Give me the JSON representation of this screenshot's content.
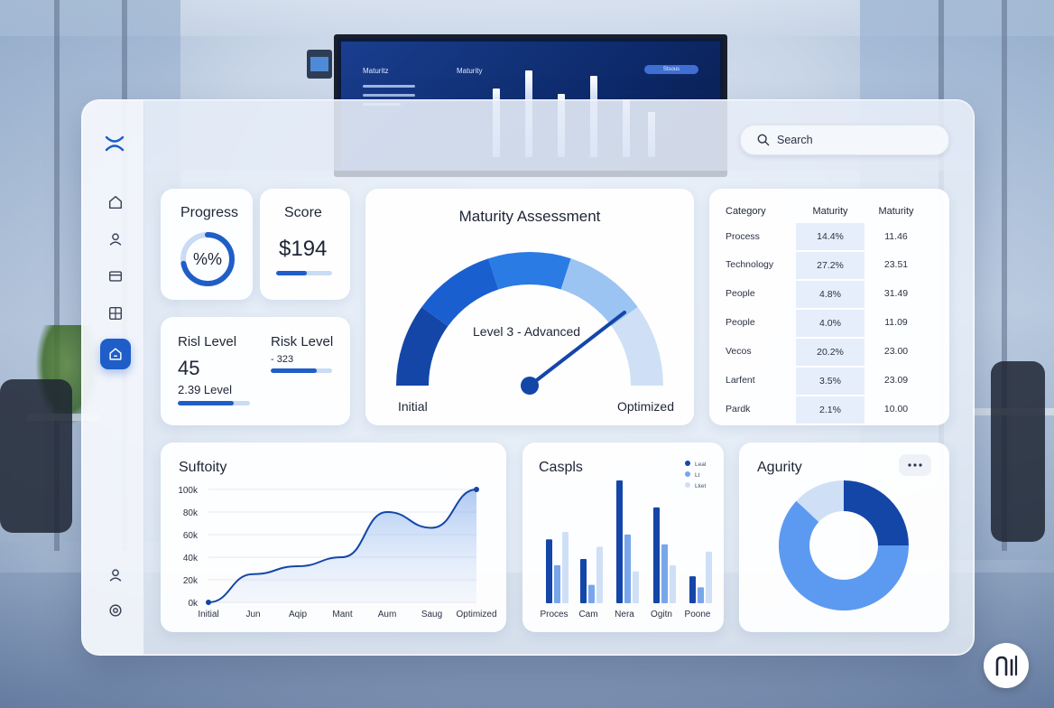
{
  "monitor": {
    "title_left": "Maturitz",
    "title_right": "Maturity",
    "button": "Stsous"
  },
  "search": {
    "placeholder": "Search"
  },
  "sidebar": {
    "logo_icon": "logo-x-icon",
    "items": [
      {
        "icon": "home-icon",
        "active": false
      },
      {
        "icon": "user-icon",
        "active": false
      },
      {
        "icon": "card-icon",
        "active": false
      },
      {
        "icon": "grid-icon",
        "active": false
      },
      {
        "icon": "house-icon",
        "active": true
      }
    ],
    "bottom_items": [
      {
        "icon": "profile-icon"
      },
      {
        "icon": "settings-icon"
      }
    ]
  },
  "progress_card": {
    "title": "Progress",
    "value": "%%",
    "progress": 0.72
  },
  "score_card": {
    "title": "Score",
    "value": "$194",
    "progress": 0.55
  },
  "risk_card": {
    "title_left": "Risl Level",
    "value_left": "45",
    "sub_left": "2.39 Level",
    "title_right": "Risk Level",
    "value_right": "- 323",
    "progress_left": 0.78,
    "progress_right": 0.75
  },
  "maturity_card": {
    "title": "Maturity Assessment",
    "level_text": "Level 3 - Advanced",
    "label_start": "Initial",
    "label_end": "Optimized",
    "segment_colors": [
      "#1446a8",
      "#1a5fd0",
      "#2a7be4",
      "#9cc4f2",
      "#cfe0f6"
    ]
  },
  "table_card": {
    "headers": [
      "Category",
      "Maturity",
      "Maturity"
    ],
    "rows": [
      [
        "Process",
        "14.4%",
        "11.46"
      ],
      [
        "Technology",
        "27.2%",
        "23.51"
      ],
      [
        "People",
        "4.8%",
        "31.49"
      ],
      [
        "People",
        "4.0%",
        "11.09"
      ],
      [
        "Vecos",
        "20.2%",
        "23.00"
      ],
      [
        "Larfent",
        "3.5%",
        "23.09"
      ],
      [
        "Pardk",
        "2.1%",
        "10.00"
      ]
    ]
  },
  "line_card": {
    "title": "Suftoity",
    "chart_data": {
      "type": "area",
      "categories": [
        "Initial",
        "Jun",
        "Aqip",
        "Mant",
        "Aum",
        "Saug",
        "Optimized"
      ],
      "values": [
        0,
        25000,
        32000,
        40000,
        80000,
        66000,
        100000
      ],
      "ylim": [
        0,
        100000
      ],
      "yticks": [
        "0k",
        "20k",
        "40k",
        "60k",
        "80k",
        "100k"
      ]
    }
  },
  "bar_card": {
    "title": "Caspls",
    "legend": [
      "Leal",
      "Lt",
      "Lket"
    ],
    "chart_data": {
      "type": "bar",
      "categories": [
        "Proces",
        "Cam",
        "Nera",
        "Ogitn",
        "Poone"
      ],
      "series": [
        {
          "name": "Leal",
          "color": "#1446a8",
          "values": [
            52,
            36,
            100,
            78,
            22
          ]
        },
        {
          "name": "Lt",
          "color": "#78a6ea",
          "values": [
            31,
            15,
            56,
            48,
            13
          ]
        },
        {
          "name": "Lket",
          "color": "#cfe0f6",
          "values": [
            58,
            46,
            26,
            31,
            42
          ]
        }
      ]
    }
  },
  "donut_card": {
    "title": "Agurity",
    "menu_icon": "more-icon",
    "chart_data": {
      "type": "pie",
      "values": [
        25,
        62,
        13
      ],
      "colors": [
        "#1446a8",
        "#5b9af0",
        "#cfe0f6"
      ]
    }
  },
  "corner_badge": {
    "icon": "brand-bars-icon"
  }
}
